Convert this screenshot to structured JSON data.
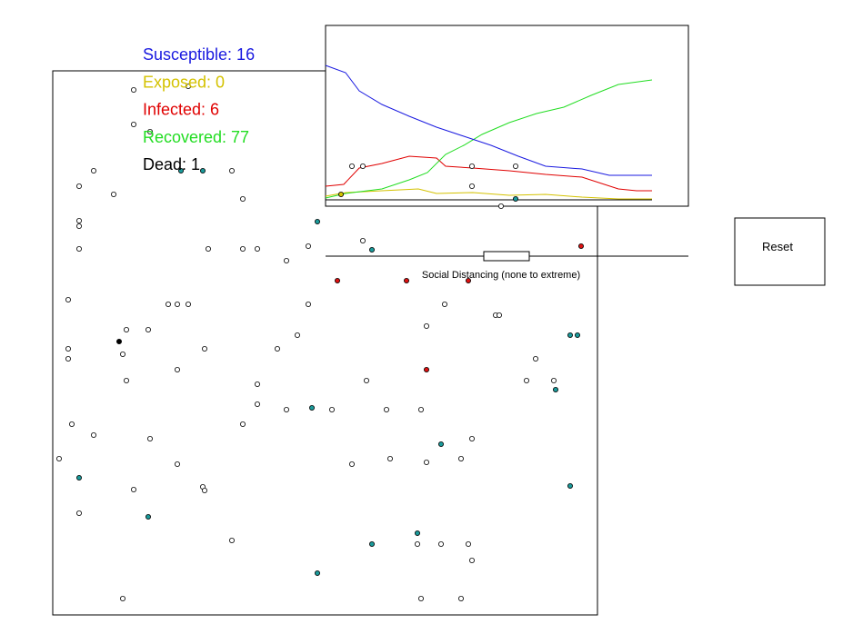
{
  "stats": [
    "Susceptible: 16",
    "Exposed: 0",
    "Infected: 6",
    "Recovered: 77",
    "Dead: 1"
  ],
  "slider_label": "Social Distancing (none to extreme)",
  "reset_button": "Reset"
}
